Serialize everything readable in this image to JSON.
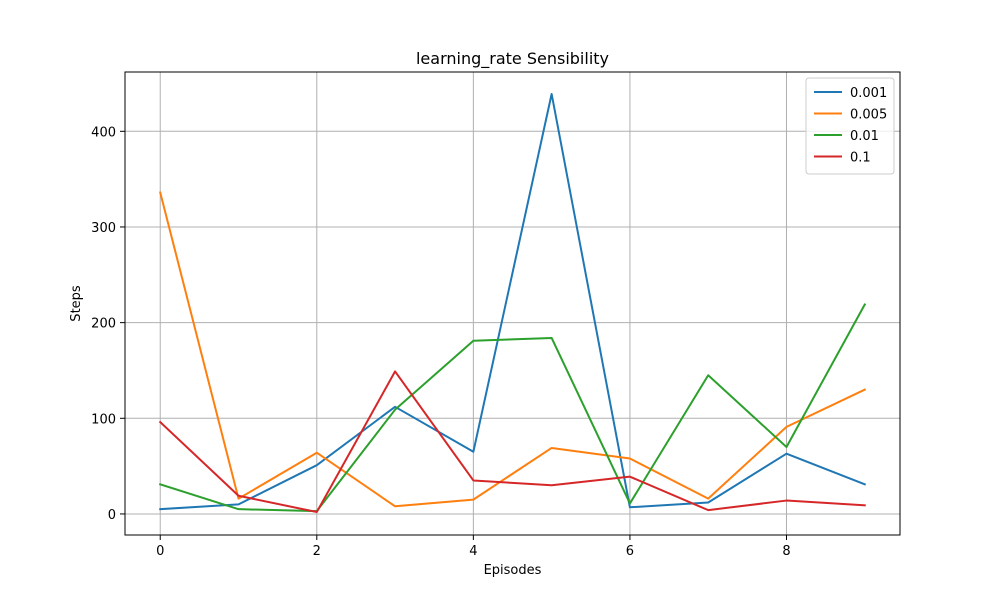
{
  "chart_data": {
    "type": "line",
    "title": "learning_rate Sensibility",
    "xlabel": "Episodes",
    "ylabel": "Steps",
    "x": [
      0,
      1,
      2,
      3,
      4,
      5,
      6,
      7,
      8,
      9
    ],
    "xlim": [
      -0.45,
      9.45
    ],
    "ylim": [
      -22,
      462
    ],
    "xticks": [
      0,
      2,
      4,
      6,
      8
    ],
    "yticks": [
      0,
      100,
      200,
      300,
      400
    ],
    "grid": true,
    "legend_position": "top-right",
    "series": [
      {
        "name": "0.001",
        "color": "#1f77b4",
        "values": [
          5,
          10,
          51,
          112,
          65,
          439,
          7,
          12,
          63,
          31
        ]
      },
      {
        "name": "0.005",
        "color": "#ff7f0e",
        "values": [
          336,
          16,
          64,
          8,
          15,
          69,
          58,
          16,
          91,
          130
        ]
      },
      {
        "name": "0.01",
        "color": "#2ca02c",
        "values": [
          31,
          5,
          3,
          109,
          181,
          184,
          11,
          145,
          70,
          219
        ]
      },
      {
        "name": "0.1",
        "color": "#d62728",
        "values": [
          96,
          19,
          2,
          149,
          35,
          30,
          39,
          4,
          14,
          9
        ]
      }
    ]
  }
}
